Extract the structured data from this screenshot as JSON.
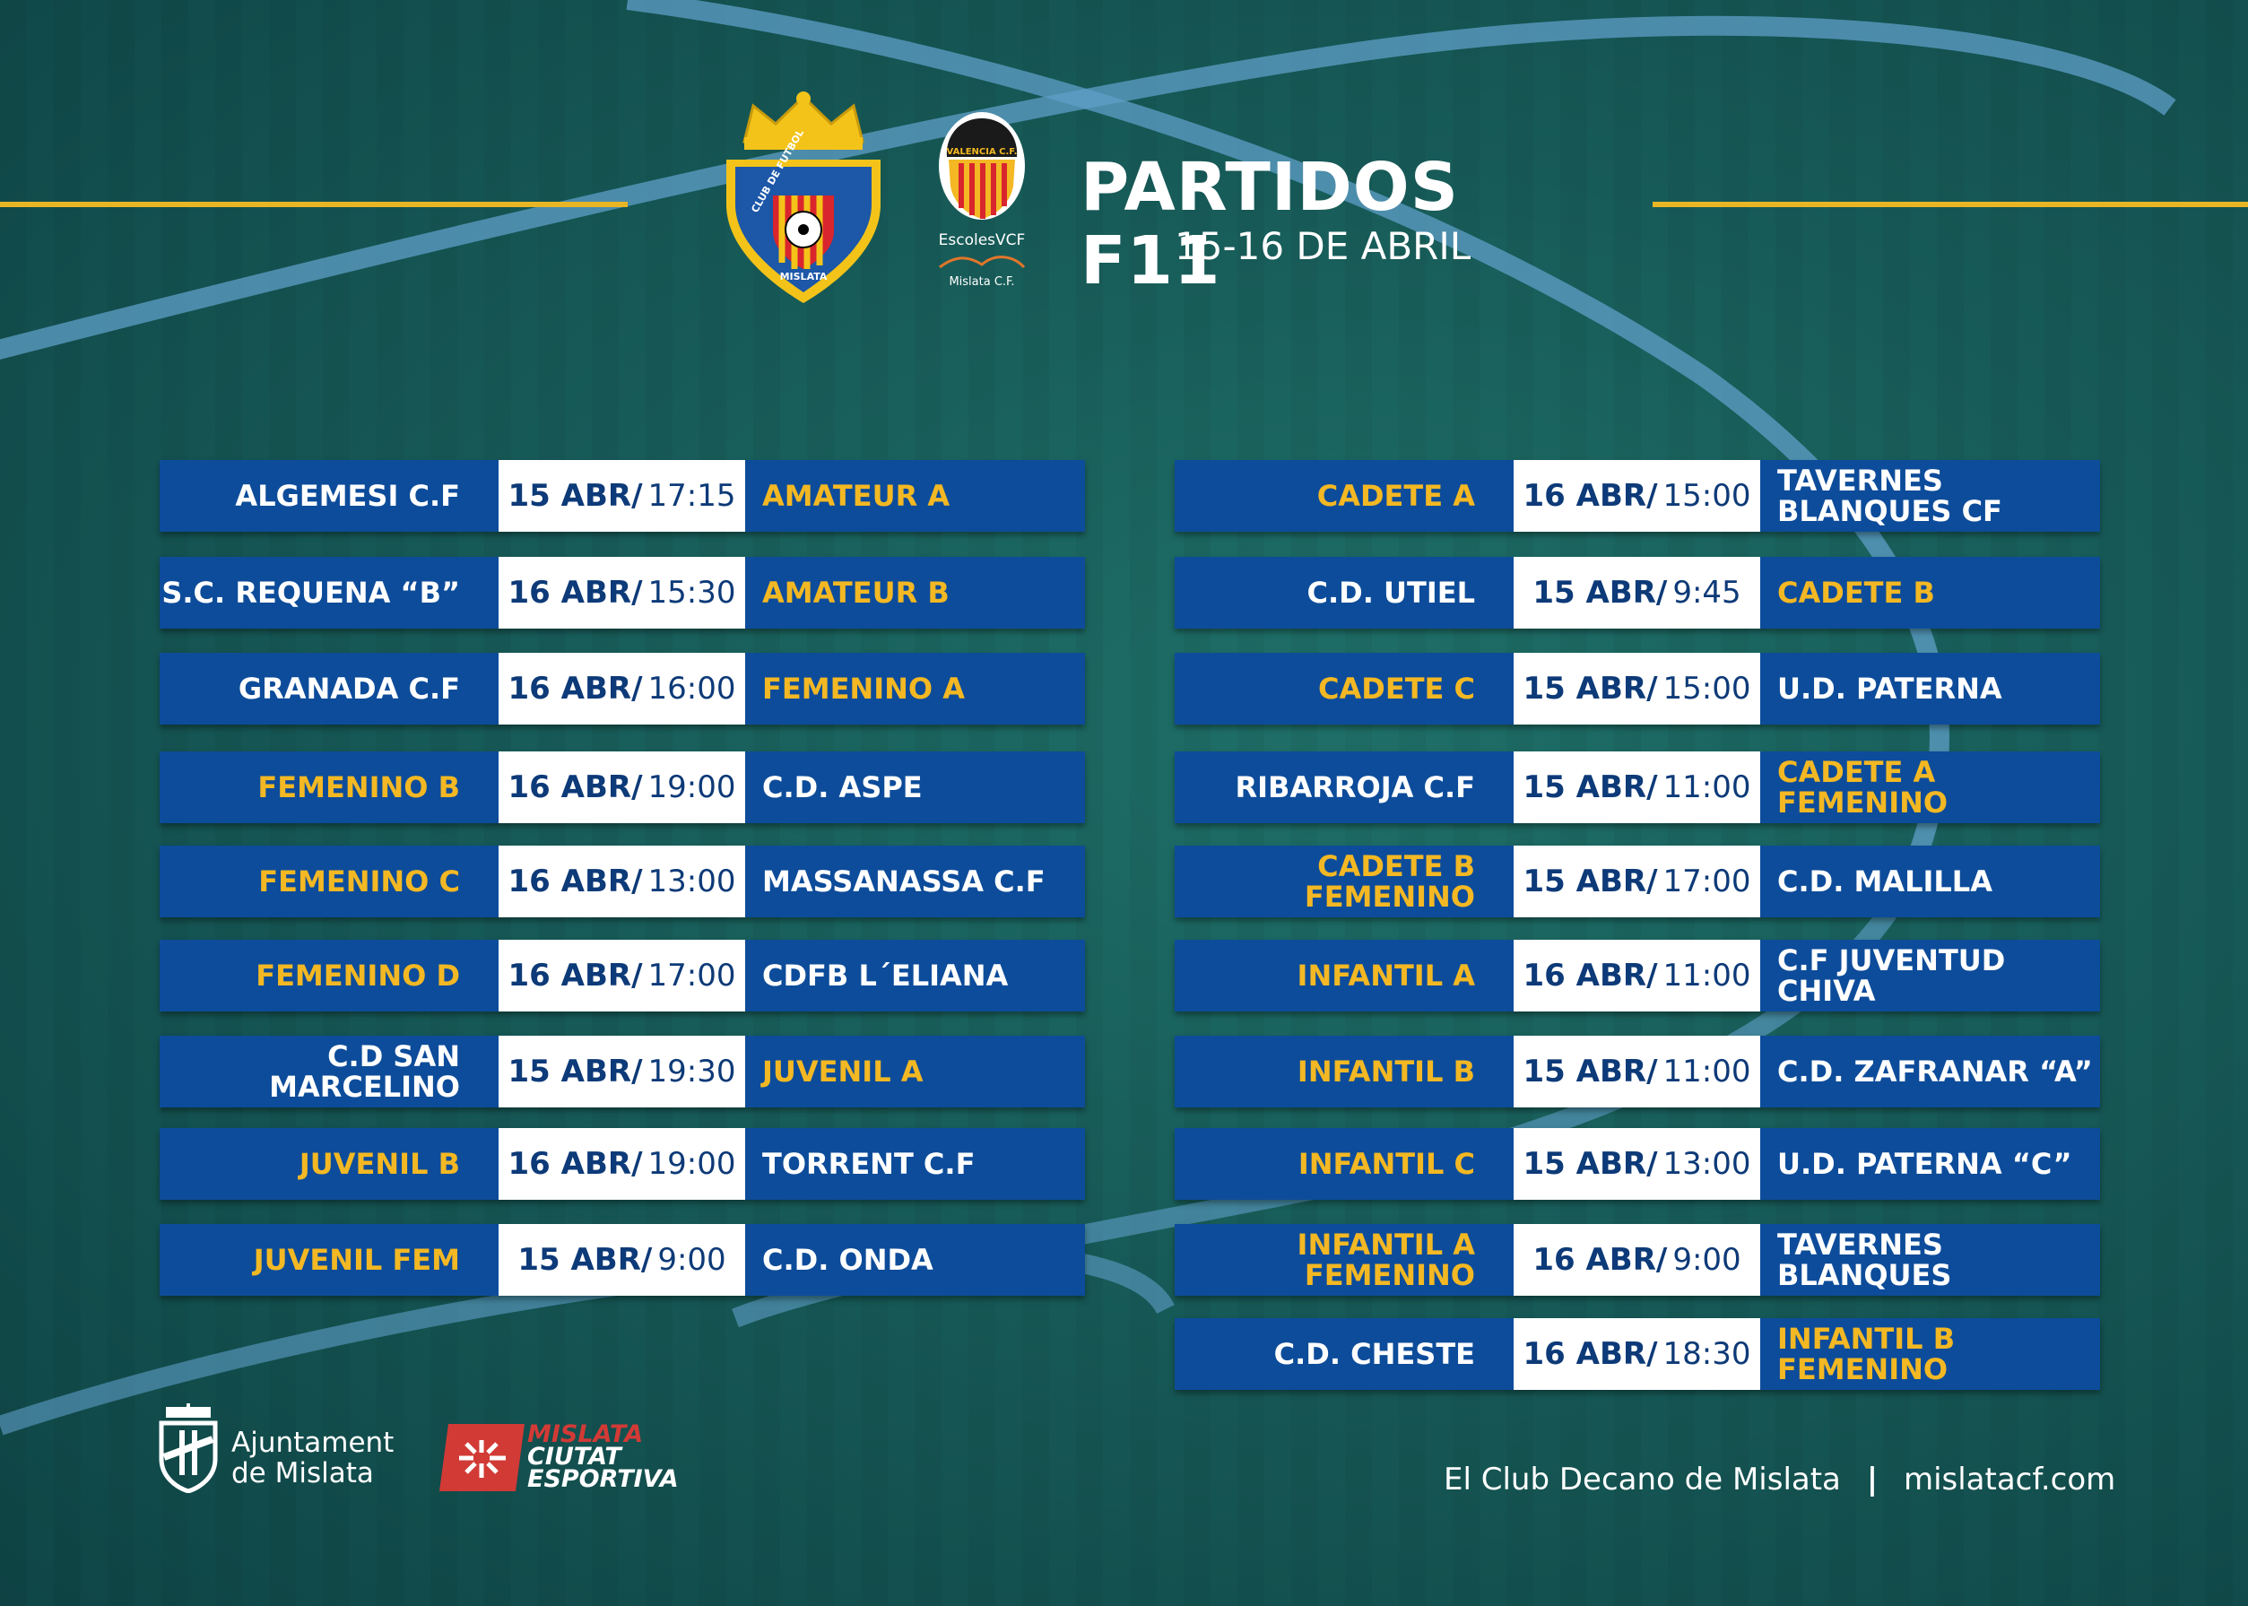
{
  "header": {
    "title": "PARTIDOS F11",
    "subtitle": "15-16 DE ABRIL",
    "crest_top_text": "CLUB DE FUTBOL",
    "crest_bottom_text": "MISLATA",
    "vcf_badge_text": "VALENCIA C.F.",
    "vcf_line1": "EscolesVCF",
    "vcf_line2": "Mislata C.F."
  },
  "colors": {
    "accent_gold": "#f3b823",
    "row_blue": "#0d4c9a",
    "date_text": "#0d3a78",
    "field_green": "#175b58"
  },
  "left_matches": [
    {
      "home": "ALGEMESI C.F",
      "day": "15 ABR/",
      "time": "17:15",
      "away": "AMATEUR A",
      "club_side": "away"
    },
    {
      "home": "S.C. REQUENA “B”",
      "day": "16 ABR/",
      "time": "15:30",
      "away": "AMATEUR B",
      "club_side": "away"
    },
    {
      "home": "GRANADA C.F",
      "day": "16 ABR/",
      "time": "16:00",
      "away": "FEMENINO A",
      "club_side": "away"
    },
    {
      "home": "FEMENINO B",
      "day": "16 ABR/",
      "time": "19:00",
      "away": "C.D. ASPE",
      "club_side": "home"
    },
    {
      "home": "FEMENINO C",
      "day": "16 ABR/",
      "time": "13:00",
      "away": "MASSANASSA C.F",
      "club_side": "home"
    },
    {
      "home": "FEMENINO D",
      "day": "16 ABR/",
      "time": "17:00",
      "away": "CDFB L´ELIANA",
      "club_side": "home"
    },
    {
      "home": "C.D SAN MARCELINO",
      "day": "15 ABR/",
      "time": "19:30",
      "away": "JUVENIL A",
      "club_side": "away"
    },
    {
      "home": "JUVENIL B",
      "day": "16 ABR/",
      "time": "19:00",
      "away": "TORRENT C.F",
      "club_side": "home"
    },
    {
      "home": "JUVENIL  FEM",
      "day": "15 ABR/",
      "time": "9:00",
      "away": "C.D. ONDA",
      "club_side": "home"
    }
  ],
  "right_matches": [
    {
      "home": "CADETE A",
      "day": "16 ABR/",
      "time": "15:00",
      "away": "TAVERNES BLANQUES CF",
      "club_side": "home"
    },
    {
      "home": "C.D. UTIEL",
      "day": "15 ABR/",
      "time": "9:45",
      "away": "CADETE B",
      "club_side": "away"
    },
    {
      "home": "CADETE C",
      "day": "15 ABR/",
      "time": "15:00",
      "away": "U.D. PATERNA",
      "club_side": "home"
    },
    {
      "home": "RIBARROJA C.F",
      "day": "15 ABR/",
      "time": "11:00",
      "away": "CADETE A FEMENINO",
      "club_side": "away"
    },
    {
      "home": "CADETE B FEMENINO",
      "day": "15 ABR/",
      "time": "17:00",
      "away": "C.D. MALILLA",
      "club_side": "home"
    },
    {
      "home": "INFANTIL A",
      "day": "16 ABR/",
      "time": "11:00",
      "away": "C.F JUVENTUD CHIVA",
      "club_side": "home"
    },
    {
      "home": "INFANTIL B",
      "day": "15 ABR/",
      "time": "11:00",
      "away": "C.D. ZAFRANAR “A”",
      "club_side": "home"
    },
    {
      "home": "INFANTIL C",
      "day": "15 ABR/",
      "time": "13:00",
      "away": "U.D. PATERNA “C”",
      "club_side": "home"
    },
    {
      "home": "INFANTIL A FEMENINO",
      "day": "16 ABR/",
      "time": "9:00",
      "away": "TAVERNES BLANQUES",
      "club_side": "home"
    },
    {
      "home": "C.D. CHESTE",
      "day": "16 ABR/",
      "time": "18:30",
      "away": "INFANTIL B FEMENINO",
      "club_side": "away"
    }
  ],
  "footer": {
    "ajuntament_line1": "Ajuntament",
    "ajuntament_line2": "de Mislata",
    "mislata_line1": "MISLATA",
    "mislata_line2": "CIUTAT",
    "mislata_line3": "ESPORTIVA",
    "slogan": "El Club Decano de Mislata",
    "separator": "|",
    "website": "mislatacf.com"
  }
}
